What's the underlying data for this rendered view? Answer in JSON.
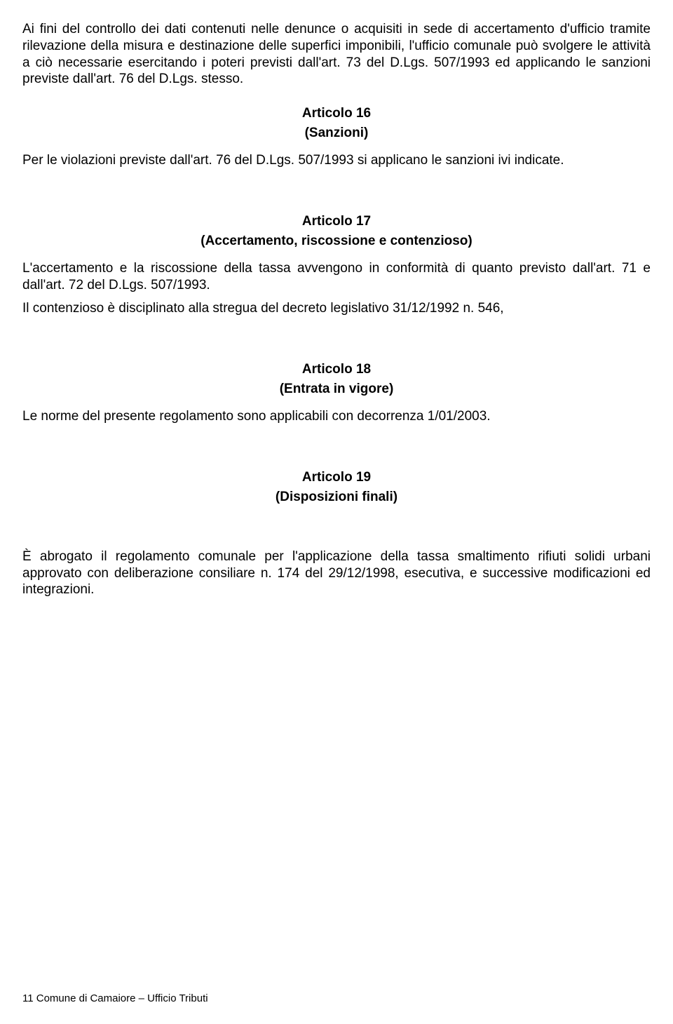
{
  "intro": {
    "p1": "Ai fini del controllo dei dati contenuti nelle denunce o acquisiti in sede di accertamento d'ufficio tramite rilevazione della misura e destinazione delle superfici imponibili, l'ufficio comunale può svolgere le attività a ciò necessarie esercitando i poteri previsti dall'art. 73 del D.Lgs. 507/1993 ed applicando le sanzioni previste dall'art. 76 del D.Lgs. stesso."
  },
  "art16": {
    "title": "Articolo 16",
    "sub": "(Sanzioni)",
    "p1": "Per le violazioni previste dall'art. 76 del D.Lgs. 507/1993 si applicano le sanzioni ivi indicate."
  },
  "art17": {
    "title": "Articolo 17",
    "sub": "(Accertamento, riscossione e contenzioso)",
    "p1": "L'accertamento e la riscossione della tassa avvengono in conformità di quanto previsto dall'art. 71 e dall'art. 72 del D.Lgs. 507/1993.",
    "p2": "Il contenzioso è disciplinato alla stregua del decreto legislativo 31/12/1992 n. 546,"
  },
  "art18": {
    "title": "Articolo 18",
    "sub": "(Entrata in vigore)",
    "p1": "Le norme del presente regolamento sono applicabili con decorrenza 1/01/2003."
  },
  "art19": {
    "title": "Articolo 19",
    "sub": "(Disposizioni finali)",
    "p1": "È abrogato il regolamento comunale per l'applicazione della tassa smaltimento rifiuti solidi urbani approvato con deliberazione consiliare n. 174 del 29/12/1998, esecutiva, e successive modificazioni ed integrazioni."
  },
  "footer": {
    "text": "11 Comune di Camaiore – Ufficio Tributi"
  }
}
